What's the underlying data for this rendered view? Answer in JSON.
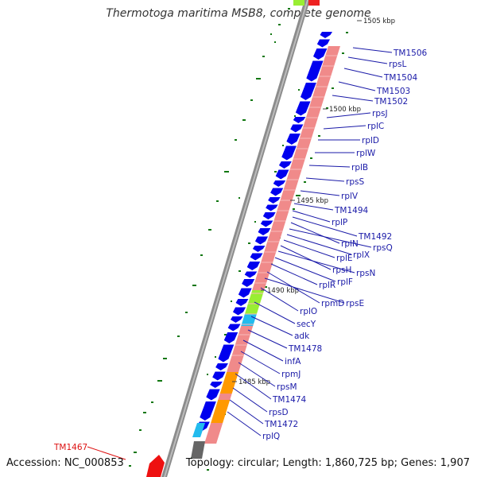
{
  "title": "Thermotoga maritima MSB8, complete genome",
  "footer": {
    "accession": "Accession: NC_000853",
    "summary": "Topology: circular; Length: 1,860,725 bp; Genes: 1,907"
  },
  "colors": {
    "backbone": "#8c8c8c",
    "cds_forward": "#0000ee",
    "rrna_operon": "#f08a8a",
    "highlight_green": "#99ee33",
    "highlight_cyan": "#22bbee",
    "highlight_orange": "#ff9900",
    "highlight_dark": "#666666",
    "label_blue": "#1a1aa8",
    "label_red": "#dd1111",
    "gc_skew": "#117711"
  },
  "kbp_ticks": [
    "1505 kbp",
    "1500 kbp",
    "1495 kbp",
    "1490 kbp",
    "1485 kbp"
  ],
  "gene_labels": [
    {
      "text": "TM1506",
      "color": "blue"
    },
    {
      "text": "rpsL",
      "color": "blue"
    },
    {
      "text": "TM1504",
      "color": "blue"
    },
    {
      "text": "TM1503",
      "color": "blue"
    },
    {
      "text": "TM1502",
      "color": "blue"
    },
    {
      "text": "rpsJ",
      "color": "blue"
    },
    {
      "text": "rplC",
      "color": "blue"
    },
    {
      "text": "rplD",
      "color": "blue"
    },
    {
      "text": "rplW",
      "color": "blue"
    },
    {
      "text": "rplB",
      "color": "blue"
    },
    {
      "text": "rpsS",
      "color": "blue"
    },
    {
      "text": "rplV",
      "color": "blue"
    },
    {
      "text": "TM1494",
      "color": "blue"
    },
    {
      "text": "rplP",
      "color": "blue"
    },
    {
      "text": "TM1492",
      "color": "blue"
    },
    {
      "text": "rplN",
      "color": "blue"
    },
    {
      "text": "rpsQ",
      "color": "blue"
    },
    {
      "text": "rplX",
      "color": "blue"
    },
    {
      "text": "rplE",
      "color": "blue"
    },
    {
      "text": "rpsH",
      "color": "blue"
    },
    {
      "text": "rpsN",
      "color": "blue"
    },
    {
      "text": "rplF",
      "color": "blue"
    },
    {
      "text": "rplR",
      "color": "blue"
    },
    {
      "text": "rpmD",
      "color": "blue"
    },
    {
      "text": "rpsE",
      "color": "blue"
    },
    {
      "text": "rplO",
      "color": "blue"
    },
    {
      "text": "secY",
      "color": "blue"
    },
    {
      "text": "adk",
      "color": "blue"
    },
    {
      "text": "TM1478",
      "color": "blue"
    },
    {
      "text": "infA",
      "color": "blue"
    },
    {
      "text": "rpmJ",
      "color": "blue"
    },
    {
      "text": "rpsM",
      "color": "blue"
    },
    {
      "text": "TM1474",
      "color": "blue"
    },
    {
      "text": "rpsD",
      "color": "blue"
    },
    {
      "text": "TM1472",
      "color": "blue"
    },
    {
      "text": "rplQ",
      "color": "blue"
    },
    {
      "text": "TM1467",
      "color": "red"
    }
  ]
}
